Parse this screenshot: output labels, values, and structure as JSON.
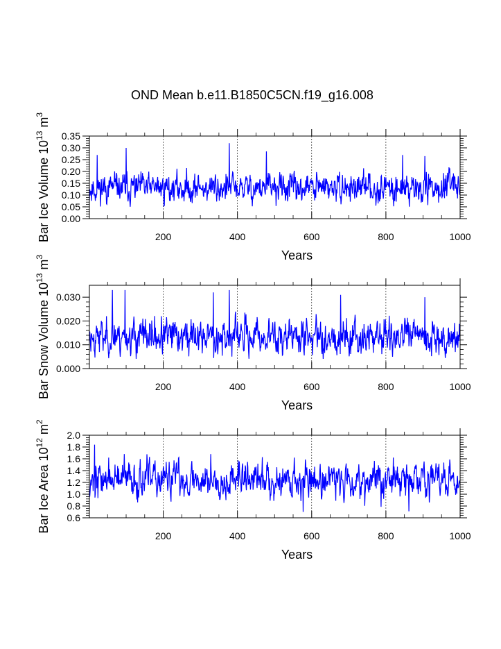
{
  "title": "OND Mean b.e11.B1850C5CN.f19_g16.008",
  "line_color": "#0000ff",
  "chart_data": [
    {
      "type": "line",
      "xlabel": "Years",
      "ylabel_base": "Bar Ice Volume 10",
      "ylabel_exp": "13",
      "ylabel_unit": " m",
      "ylabel_unit_exp": "3",
      "xlim": [
        1,
        1000
      ],
      "ylim": [
        0.0,
        0.35
      ],
      "x_ticks": [
        200,
        400,
        600,
        800,
        1000
      ],
      "x_tick_labels": [
        "200",
        "400",
        "600",
        "800",
        "1000"
      ],
      "y_ticks": [
        0.0,
        0.05,
        0.1,
        0.15,
        0.2,
        0.25,
        0.3,
        0.35
      ],
      "y_tick_labels": [
        "0.00",
        "0.05",
        "0.10",
        "0.15",
        "0.20",
        "0.25",
        "0.30",
        "0.35"
      ],
      "grid": "vertical dashed at x ticks",
      "series_stats": {
        "mean": 0.13,
        "sd": 0.035,
        "min": 0.05,
        "max": 0.32,
        "n": 1000,
        "seed": 11
      },
      "spikes": [
        [
          22,
          0.27
        ],
        [
          100,
          0.3
        ],
        [
          378,
          0.32
        ],
        [
          478,
          0.285
        ],
        [
          845,
          0.27
        ],
        [
          905,
          0.265
        ]
      ]
    },
    {
      "type": "line",
      "xlabel": "Years",
      "ylabel_base": "Bar Snow Volume 10",
      "ylabel_exp": "13",
      "ylabel_unit": " m",
      "ylabel_unit_exp": "3",
      "xlim": [
        1,
        1000
      ],
      "ylim": [
        0.0,
        0.035
      ],
      "x_ticks": [
        200,
        400,
        600,
        800,
        1000
      ],
      "x_tick_labels": [
        "200",
        "400",
        "600",
        "800",
        "1000"
      ],
      "y_ticks": [
        0.0,
        0.01,
        0.02,
        0.03
      ],
      "y_tick_labels": [
        "0.000",
        "0.010",
        "0.020",
        "0.030"
      ],
      "grid": "vertical dashed at x ticks",
      "series_stats": {
        "mean": 0.0135,
        "sd": 0.0042,
        "min": 0.004,
        "max": 0.033,
        "n": 1000,
        "seed": 23
      },
      "spikes": [
        [
          63,
          0.033
        ],
        [
          97,
          0.033
        ],
        [
          335,
          0.032
        ],
        [
          378,
          0.033
        ],
        [
          678,
          0.031
        ],
        [
          905,
          0.03
        ]
      ]
    },
    {
      "type": "line",
      "xlabel": "Years",
      "ylabel_base": "Bar Ice Area 10",
      "ylabel_exp": "12",
      "ylabel_unit": " m",
      "ylabel_unit_exp": "2",
      "xlim": [
        1,
        1000
      ],
      "ylim": [
        0.6,
        2.0
      ],
      "x_ticks": [
        200,
        400,
        600,
        800,
        1000
      ],
      "x_tick_labels": [
        "200",
        "400",
        "600",
        "800",
        "1000"
      ],
      "y_ticks": [
        0.6,
        0.8,
        1.0,
        1.2,
        1.4,
        1.6,
        1.8,
        2.0
      ],
      "y_tick_labels": [
        "0.6",
        "0.8",
        "1.0",
        "1.2",
        "1.4",
        "1.6",
        "1.8",
        "2.0"
      ],
      "grid": "vertical dashed at x ticks",
      "series_stats": {
        "mean": 1.25,
        "sd": 0.17,
        "min": 0.7,
        "max": 1.84,
        "n": 1000,
        "seed": 37
      },
      "spikes": [
        [
          15,
          1.84
        ],
        [
          95,
          1.68
        ],
        [
          328,
          1.68
        ],
        [
          577,
          0.7
        ],
        [
          820,
          1.62
        ],
        [
          862,
          0.71
        ]
      ]
    }
  ]
}
